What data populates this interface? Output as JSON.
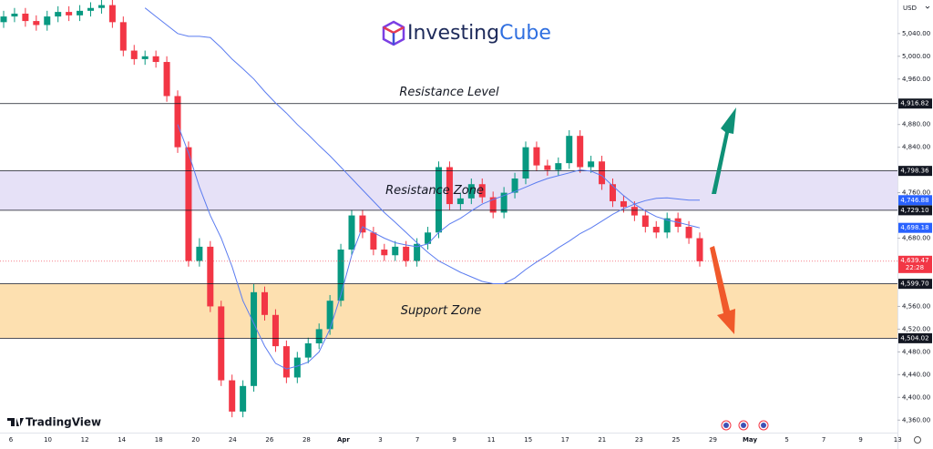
{
  "logo": {
    "text1": "Investing",
    "text2": "Cube"
  },
  "watermark": "TradingView",
  "chart_data": {
    "type": "candlestick",
    "currency": "USD",
    "ylim": [
      4338,
      5099
    ],
    "yticks": [
      {
        "value": 5040,
        "label": "5,040.00"
      },
      {
        "value": 5000,
        "label": "5,000.00"
      },
      {
        "value": 4960,
        "label": "4,960.00"
      },
      {
        "value": 4880,
        "label": "4,880.00"
      },
      {
        "value": 4840,
        "label": "4,840.00"
      },
      {
        "value": 4760,
        "label": "4,760.00"
      },
      {
        "value": 4680,
        "label": "4,680.00"
      },
      {
        "value": 4560,
        "label": "4,560.00"
      },
      {
        "value": 4520,
        "label": "4,520.00"
      },
      {
        "value": 4480,
        "label": "4,480.00"
      },
      {
        "value": 4440,
        "label": "4,440.00"
      },
      {
        "value": 4400,
        "label": "4,400.00"
      },
      {
        "value": 4360,
        "label": "4,360.00"
      }
    ],
    "x_labels": [
      "6",
      "10",
      "12",
      "14",
      "18",
      "20",
      "24",
      "26",
      "28",
      "Apr",
      "3",
      "7",
      "9",
      "11",
      "15",
      "17",
      "21",
      "23",
      "25",
      "29",
      "May",
      "5",
      "7",
      "9",
      "13"
    ],
    "up_color": "#089981",
    "down_color": "#f23645",
    "open": [
      5060,
      5070,
      5075,
      5062,
      5055,
      5070,
      5078,
      5072,
      5080,
      5085,
      5090,
      5060,
      5010,
      4995,
      5000,
      4990,
      4930,
      4840,
      4640,
      4665,
      4560,
      4430,
      4375,
      4420,
      4585,
      4545,
      4490,
      4435,
      4470,
      4495,
      4520,
      4570,
      4660,
      4720,
      4690,
      4660,
      4650,
      4665,
      4640,
      4670,
      4690,
      4805,
      4740,
      4750,
      4775,
      4752,
      4725,
      4760,
      4785,
      4840,
      4808,
      4800,
      4812,
      4860,
      4805,
      4815,
      4775,
      4745,
      4735,
      4720,
      4700,
      4690,
      4715,
      4700,
      4680
    ],
    "high": [
      5080,
      5085,
      5085,
      5072,
      5080,
      5088,
      5088,
      5090,
      5095,
      5100,
      5100,
      5070,
      5020,
      5010,
      5010,
      5000,
      4940,
      4850,
      4680,
      4675,
      4570,
      4440,
      4430,
      4600,
      4595,
      4555,
      4500,
      4480,
      4505,
      4530,
      4580,
      4670,
      4730,
      4730,
      4700,
      4670,
      4675,
      4675,
      4680,
      4700,
      4815,
      4815,
      4760,
      4785,
      4785,
      4762,
      4770,
      4795,
      4850,
      4850,
      4818,
      4822,
      4870,
      4870,
      4825,
      4825,
      4785,
      4755,
      4745,
      4730,
      4710,
      4725,
      4725,
      4710,
      4690
    ],
    "low": [
      5050,
      5060,
      5052,
      5045,
      5045,
      5060,
      5062,
      5062,
      5070,
      5075,
      5050,
      5000,
      4985,
      4985,
      4980,
      4920,
      4830,
      4630,
      4630,
      4550,
      4420,
      4365,
      4365,
      4410,
      4535,
      4480,
      4425,
      4425,
      4460,
      4485,
      4510,
      4560,
      4650,
      4680,
      4650,
      4640,
      4640,
      4630,
      4630,
      4660,
      4680,
      4730,
      4730,
      4740,
      4742,
      4715,
      4715,
      4750,
      4775,
      4798,
      4790,
      4790,
      4802,
      4795,
      4795,
      4765,
      4735,
      4725,
      4710,
      4690,
      4680,
      4680,
      4690,
      4670,
      4630
    ],
    "close": [
      5070,
      5075,
      5062,
      5055,
      5070,
      5078,
      5072,
      5080,
      5085,
      5090,
      5060,
      5010,
      4995,
      5000,
      4990,
      4930,
      4840,
      4640,
      4665,
      4560,
      4430,
      4375,
      4420,
      4585,
      4545,
      4490,
      4435,
      4470,
      4495,
      4520,
      4570,
      4660,
      4720,
      4690,
      4660,
      4650,
      4665,
      4640,
      4670,
      4690,
      4805,
      4740,
      4750,
      4775,
      4752,
      4725,
      4760,
      4785,
      4840,
      4808,
      4800,
      4812,
      4860,
      4805,
      4815,
      4775,
      4745,
      4735,
      4720,
      4700,
      4690,
      4715,
      4700,
      4680,
      4639.47
    ],
    "ma": [
      {
        "color": "#5b7cf0",
        "value_label": "4,746.88",
        "values": [
          null,
          null,
          null,
          null,
          null,
          null,
          null,
          null,
          null,
          null,
          null,
          null,
          null,
          5085,
          5070,
          5055,
          5040,
          5035,
          5035,
          5033,
          5015,
          4995,
          4978,
          4960,
          4938,
          4918,
          4900,
          4880,
          4862,
          4843,
          4825,
          4805,
          4785,
          4765,
          4745,
          4725,
          4708,
          4690,
          4672,
          4655,
          4640,
          4630,
          4620,
          4612,
          4604,
          4600,
          4600,
          4610,
          4625,
          4638,
          4650,
          4663,
          4675,
          4688,
          4698,
          4710,
          4722,
          4732,
          4740,
          4746,
          4750,
          4751,
          4749,
          4747,
          4746.88
        ]
      },
      {
        "color": "#5b7cf0",
        "value_label": "4,698.18",
        "values": [
          null,
          null,
          null,
          null,
          null,
          null,
          null,
          null,
          null,
          null,
          null,
          null,
          null,
          null,
          null,
          null,
          4880,
          4830,
          4770,
          4720,
          4680,
          4630,
          4570,
          4530,
          4490,
          4460,
          4450,
          4455,
          4462,
          4480,
          4520,
          4580,
          4650,
          4700,
          4690,
          4680,
          4672,
          4668,
          4665,
          4670,
          4690,
          4705,
          4715,
          4728,
          4740,
          4748,
          4755,
          4762,
          4770,
          4778,
          4785,
          4790,
          4795,
          4800,
          4798,
          4790,
          4772,
          4755,
          4740,
          4728,
          4718,
          4712,
          4708,
          4703,
          4698.18
        ]
      }
    ],
    "resistance_level": {
      "name": "Resistance Level",
      "value": 4916.82,
      "label": "4,916.82"
    },
    "zones": [
      {
        "name": "Resistance Zone",
        "color": "#e6e1f7",
        "top": {
          "value": 4798.36,
          "label": "4,798.36"
        },
        "bottom": {
          "value": 4729.1,
          "label": "4,729.10"
        }
      },
      {
        "name": "Support Zone",
        "color": "#fde0b0",
        "top": {
          "value": 4599.7,
          "label": "4,599.70"
        },
        "bottom": {
          "value": 4504.02,
          "label": "4,504.02"
        }
      }
    ],
    "last_price": {
      "value": 4639.47,
      "label": "4,639.47",
      "countdown": "22:28",
      "color": "#f23645"
    },
    "grid": false
  }
}
